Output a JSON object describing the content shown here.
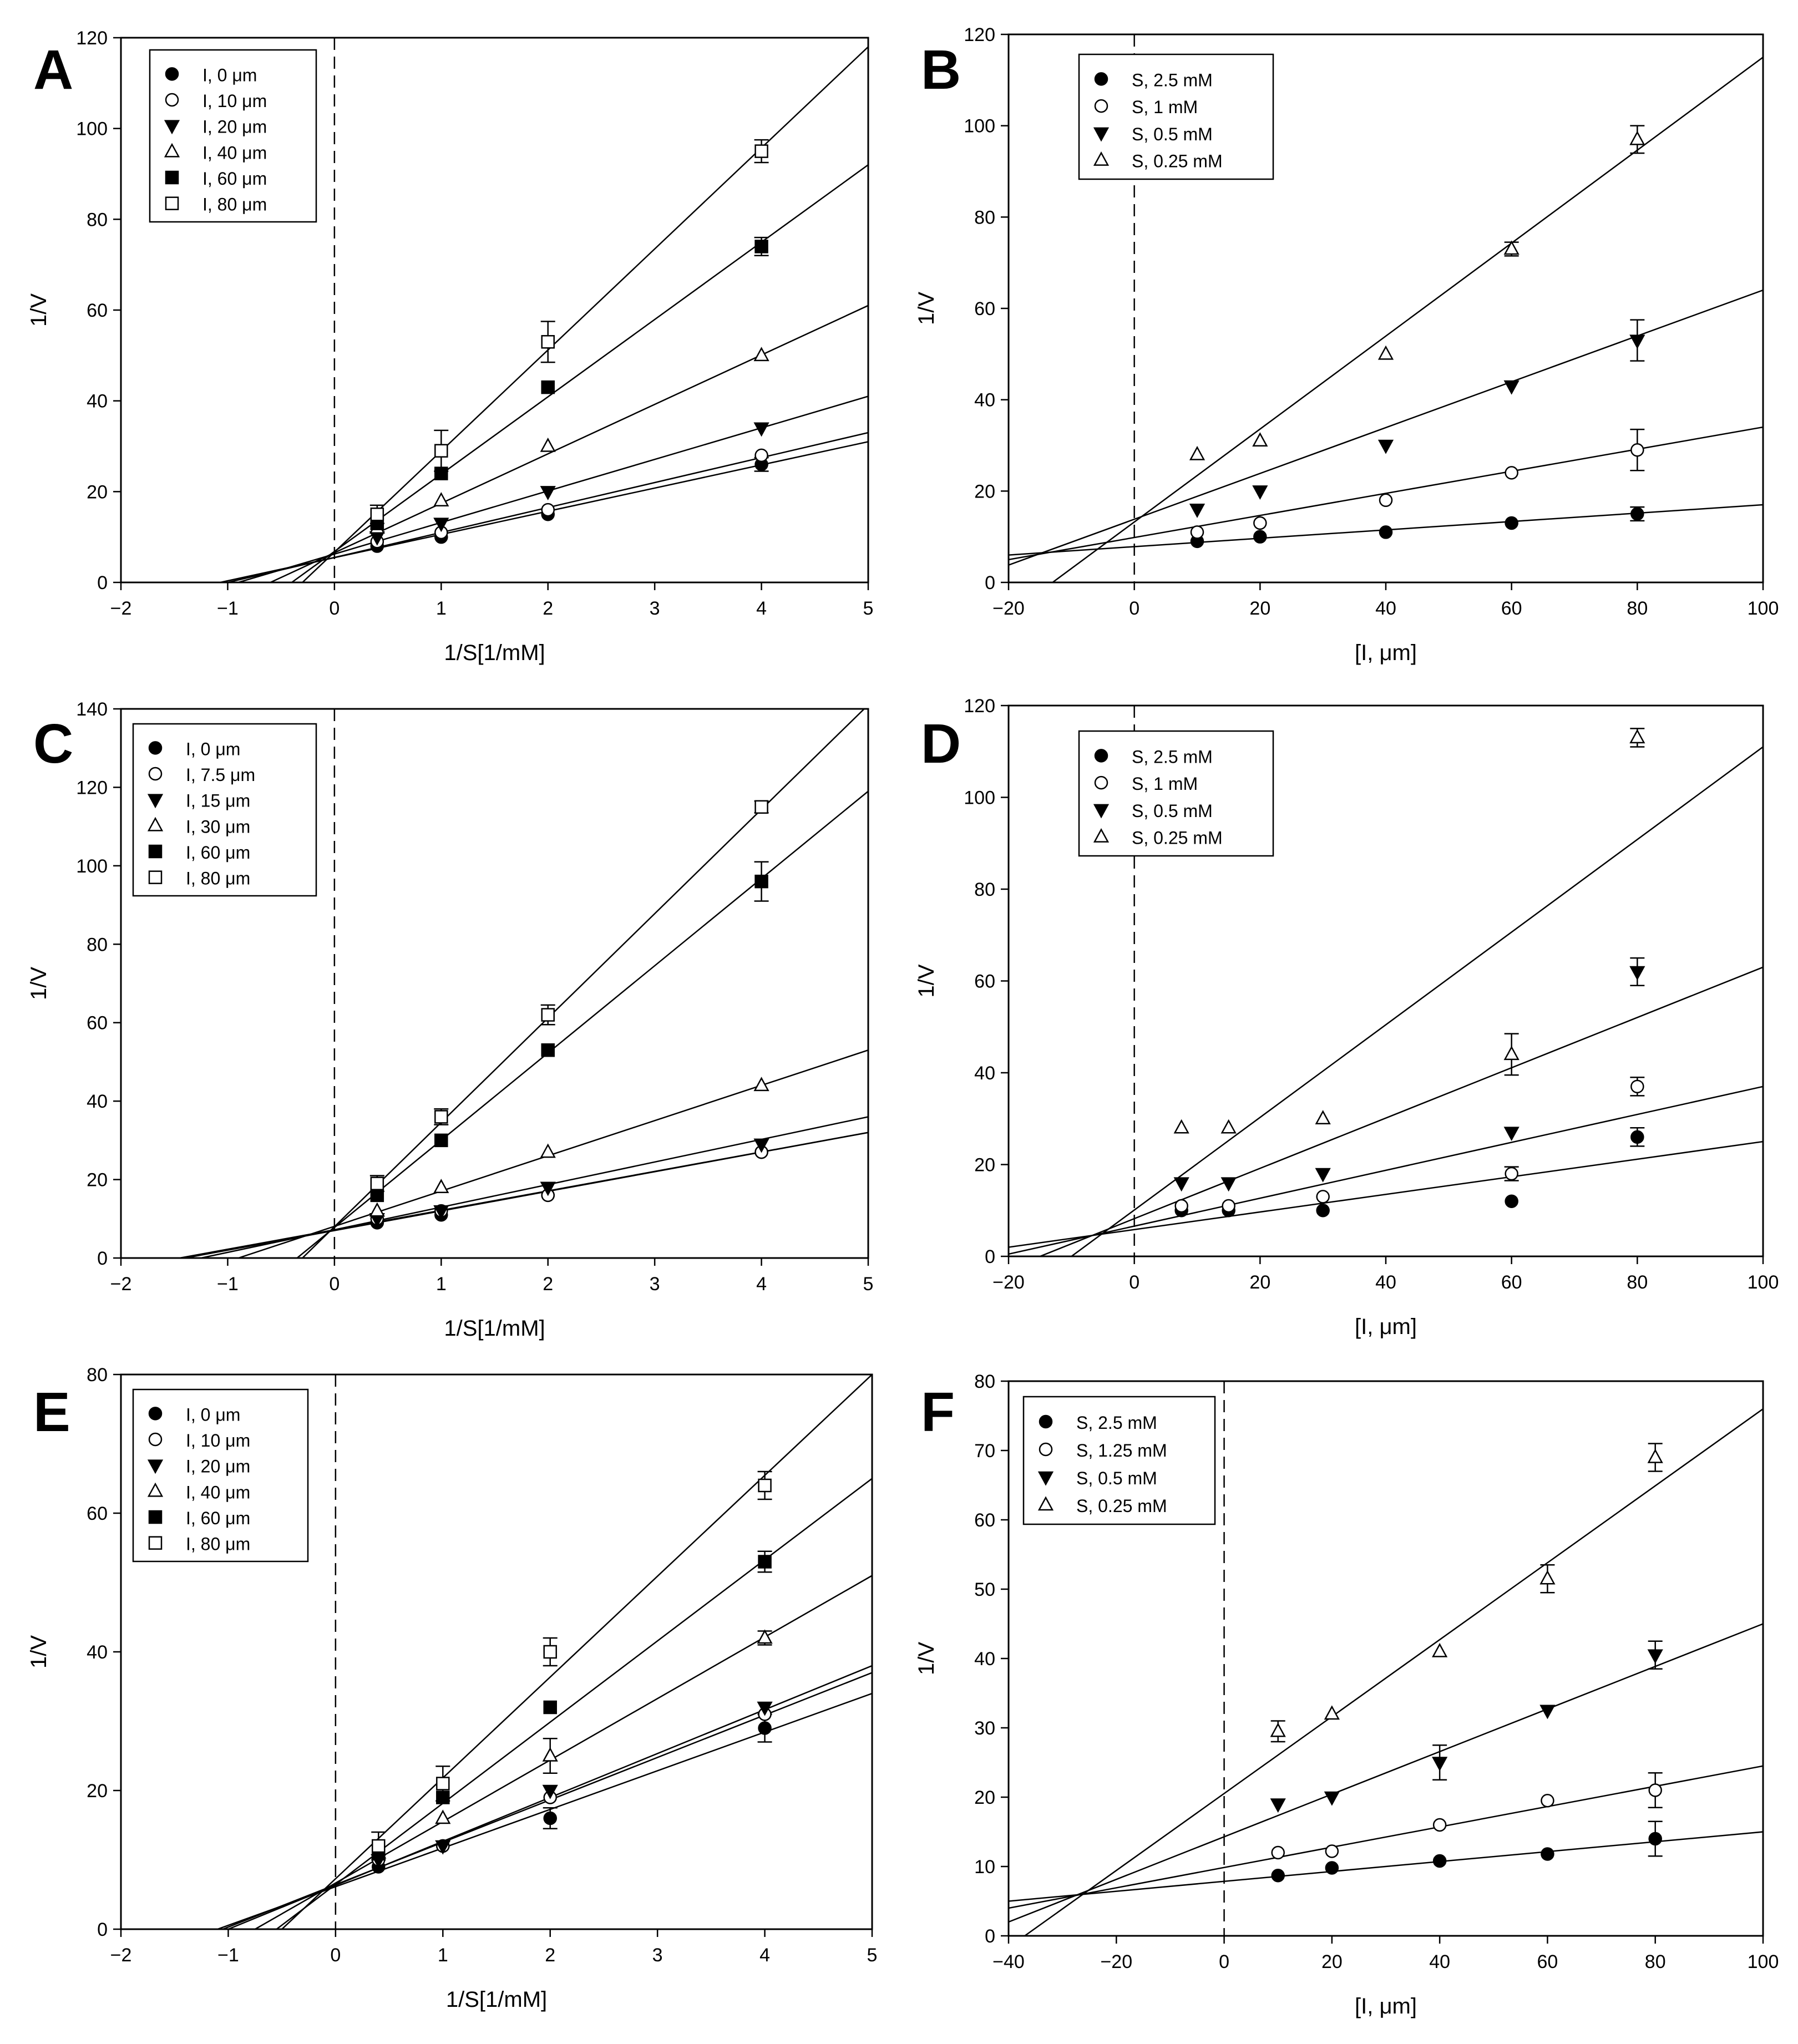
{
  "chart_data": [
    {
      "type": "scatter",
      "panel": "A",
      "xlabel": "1/S[1/mM]",
      "ylabel": "1/V",
      "xlim": [
        -2,
        5
      ],
      "ylim": [
        0,
        120
      ],
      "xticks": [
        -2,
        -1,
        0,
        1,
        2,
        3,
        4,
        5
      ],
      "yticks": [
        0,
        20,
        40,
        60,
        80,
        100,
        120
      ],
      "tick_labels_x": [
        "−2",
        "−1",
        "0",
        "1",
        "2",
        "3",
        "4",
        "5"
      ],
      "tick_labels_y": [
        "0",
        "20",
        "40",
        "60",
        "80",
        "100",
        "120"
      ],
      "dashed_vline_x": 0,
      "x": [
        0.4,
        1,
        2,
        4
      ],
      "series": [
        {
          "name": "I, 0 μm",
          "marker": "circle-filled",
          "values": [
            8,
            10,
            15,
            26
          ],
          "errors": [
            0,
            0,
            0,
            1.5
          ],
          "fit": [
            [
              -1.07,
              0
            ],
            [
              5,
              31
            ]
          ]
        },
        {
          "name": "I, 10 μm",
          "marker": "circle-open",
          "values": [
            9,
            11,
            16,
            28
          ],
          "errors": [
            0,
            0,
            0,
            0
          ],
          "fit": [
            [
              -1.0,
              0
            ],
            [
              5,
              33
            ]
          ]
        },
        {
          "name": "I, 20 μm",
          "marker": "triangle-down-filled",
          "values": [
            10,
            13,
            20,
            34
          ],
          "errors": [
            0,
            0,
            0,
            0
          ],
          "fit": [
            [
              -0.9,
              0
            ],
            [
              5,
              41
            ]
          ]
        },
        {
          "name": "I, 40 μm",
          "marker": "triangle-up-open",
          "values": [
            12,
            18,
            30,
            50
          ],
          "errors": [
            0,
            0,
            0,
            0
          ],
          "fit": [
            [
              -0.6,
              0
            ],
            [
              5,
              61
            ]
          ]
        },
        {
          "name": "I, 60 μm",
          "marker": "square-filled",
          "values": [
            13,
            24,
            43,
            74
          ],
          "errors": [
            0,
            0,
            0,
            2
          ],
          "fit": [
            [
              -0.4,
              0
            ],
            [
              5,
              92
            ]
          ]
        },
        {
          "name": "I, 80 μm",
          "marker": "square-open",
          "values": [
            15,
            29,
            53,
            95
          ],
          "errors": [
            2,
            4.5,
            4.5,
            2.5
          ],
          "fit": [
            [
              -0.3,
              0
            ],
            [
              5,
              118
            ]
          ]
        }
      ]
    },
    {
      "type": "scatter",
      "panel": "B",
      "xlabel": "[I, μm]",
      "ylabel": "1/V",
      "xlim": [
        -20,
        100
      ],
      "ylim": [
        0,
        120
      ],
      "xticks": [
        -20,
        0,
        20,
        40,
        60,
        80,
        100
      ],
      "yticks": [
        0,
        20,
        40,
        60,
        80,
        100,
        120
      ],
      "tick_labels_x": [
        "−20",
        "0",
        "20",
        "40",
        "60",
        "80",
        "100"
      ],
      "tick_labels_y": [
        "0",
        "20",
        "40",
        "60",
        "80",
        "100",
        "120"
      ],
      "dashed_vline_x": 0,
      "x": [
        10,
        20,
        40,
        60,
        80
      ],
      "series": [
        {
          "name": "S, 2.5 mM",
          "marker": "circle-filled",
          "values": [
            9,
            10,
            11,
            13,
            15
          ],
          "errors": [
            0,
            0,
            0,
            0,
            1.5
          ],
          "fit": [
            [
              -20,
              6
            ],
            [
              100,
              17
            ]
          ]
        },
        {
          "name": "S, 1 mM",
          "marker": "circle-open",
          "values": [
            11,
            13,
            18,
            24,
            29
          ],
          "errors": [
            0,
            0,
            0,
            0,
            4.5
          ],
          "fit": [
            [
              -20,
              5
            ],
            [
              100,
              34
            ]
          ]
        },
        {
          "name": "S, 0.5 mM",
          "marker": "triangle-down-filled",
          "values": [
            16,
            20,
            30,
            43,
            53
          ],
          "errors": [
            0,
            0,
            0,
            0,
            4.5
          ],
          "fit": [
            [
              -20,
              3.8
            ],
            [
              100,
              64
            ]
          ]
        },
        {
          "name": "S, 0.25 mM",
          "marker": "triangle-up-open",
          "values": [
            28,
            31,
            50,
            73,
            97
          ],
          "errors": [
            0,
            0,
            0,
            1.5,
            3
          ],
          "fit": [
            [
              -13,
              0
            ],
            [
              100,
              115
            ]
          ]
        }
      ]
    },
    {
      "type": "scatter",
      "panel": "C",
      "xlabel": "1/S[1/mM]",
      "ylabel": "1/V",
      "xlim": [
        -2,
        5
      ],
      "ylim": [
        0,
        140
      ],
      "xticks": [
        -2,
        -1,
        0,
        1,
        2,
        3,
        4,
        5
      ],
      "yticks": [
        0,
        20,
        40,
        60,
        80,
        100,
        120,
        140
      ],
      "tick_labels_x": [
        "−2",
        "−1",
        "0",
        "1",
        "2",
        "3",
        "4",
        "5"
      ],
      "tick_labels_y": [
        "0",
        "20",
        "40",
        "60",
        "80",
        "100",
        "120",
        "140"
      ],
      "dashed_vline_x": 0,
      "x": [
        0.4,
        1,
        2,
        4
      ],
      "series": [
        {
          "name": "I, 0 μm",
          "marker": "circle-filled",
          "values": [
            9,
            11,
            16,
            27
          ],
          "errors": [
            0,
            0,
            0,
            0
          ],
          "fit": [
            [
              -1.45,
              0
            ],
            [
              5,
              32
            ]
          ]
        },
        {
          "name": "I, 7.5 μm",
          "marker": "circle-open",
          "values": [
            10,
            12,
            16,
            27
          ],
          "errors": [
            0,
            0,
            0,
            0
          ],
          "fit": [
            [
              -1.4,
              0
            ],
            [
              5,
              32
            ]
          ]
        },
        {
          "name": "I, 15 μm",
          "marker": "triangle-down-filled",
          "values": [
            10,
            12,
            18,
            29
          ],
          "errors": [
            0,
            0,
            0,
            0
          ],
          "fit": [
            [
              -1.25,
              0
            ],
            [
              5,
              36
            ]
          ]
        },
        {
          "name": "I, 30 μm",
          "marker": "triangle-up-open",
          "values": [
            12,
            18,
            27,
            44
          ],
          "errors": [
            0,
            0,
            0,
            0
          ],
          "fit": [
            [
              -0.9,
              0
            ],
            [
              5,
              53
            ]
          ]
        },
        {
          "name": "I, 60 μm",
          "marker": "square-filled",
          "values": [
            16,
            30,
            53,
            96
          ],
          "errors": [
            0,
            0,
            0,
            5
          ],
          "fit": [
            [
              -0.35,
              0
            ],
            [
              5,
              119
            ]
          ]
        },
        {
          "name": "I, 80 μm",
          "marker": "square-open",
          "values": [
            19,
            36,
            62,
            115
          ],
          "errors": [
            2,
            2,
            2.5,
            1.5
          ],
          "fit": [
            [
              -0.3,
              0
            ],
            [
              5,
              141
            ]
          ]
        }
      ]
    },
    {
      "type": "scatter",
      "panel": "D",
      "xlabel": "[I, μm]",
      "ylabel": "1/V",
      "xlim": [
        -20,
        100
      ],
      "ylim": [
        0,
        120
      ],
      "xticks": [
        -20,
        0,
        20,
        40,
        60,
        80,
        100
      ],
      "yticks": [
        0,
        20,
        40,
        60,
        80,
        100,
        120
      ],
      "tick_labels_x": [
        "−20",
        "0",
        "20",
        "40",
        "60",
        "80",
        "100"
      ],
      "tick_labels_y": [
        "0",
        "20",
        "40",
        "60",
        "80",
        "100",
        "120"
      ],
      "dashed_vline_x": 0,
      "x": [
        7.5,
        15,
        30,
        60,
        80
      ],
      "series": [
        {
          "name": "S, 2.5 mM",
          "marker": "circle-filled",
          "values": [
            10,
            10,
            10,
            12,
            26
          ],
          "errors": [
            0,
            0,
            0,
            0,
            2
          ],
          "fit": [
            [
              -20,
              2
            ],
            [
              100,
              25
            ]
          ]
        },
        {
          "name": "S, 1 mM",
          "marker": "circle-open",
          "values": [
            11,
            11,
            13,
            18,
            37
          ],
          "errors": [
            0,
            0,
            0,
            1.5,
            2
          ],
          "fit": [
            [
              -20,
              0.5
            ],
            [
              100,
              37
            ]
          ]
        },
        {
          "name": "S, 0.5 mM",
          "marker": "triangle-down-filled",
          "values": [
            16,
            16,
            18,
            27,
            62
          ],
          "errors": [
            0,
            0,
            0,
            0,
            3
          ],
          "fit": [
            [
              -15,
              0
            ],
            [
              100,
              63
            ]
          ]
        },
        {
          "name": "S, 0.25 mM",
          "marker": "triangle-up-open",
          "values": [
            28,
            28,
            30,
            44,
            113
          ],
          "errors": [
            0,
            0,
            0,
            4.5,
            2
          ],
          "fit": [
            [
              -10,
              0
            ],
            [
              100,
              111
            ]
          ]
        }
      ]
    },
    {
      "type": "scatter",
      "panel": "E",
      "xlabel": "1/S[1/mM]",
      "ylabel": "1/V",
      "xlim": [
        -2,
        5
      ],
      "ylim": [
        0,
        80
      ],
      "xticks": [
        -2,
        -1,
        0,
        1,
        2,
        3,
        4,
        5
      ],
      "yticks": [
        0,
        20,
        40,
        60,
        80
      ],
      "tick_labels_x": [
        "−2",
        "−1",
        "0",
        "1",
        "2",
        "3",
        "4",
        "5"
      ],
      "tick_labels_y": [
        "0",
        "20",
        "40",
        "60",
        "80"
      ],
      "dashed_vline_x": 0,
      "x": [
        0.4,
        1,
        2,
        4
      ],
      "series": [
        {
          "name": "I, 0 μm",
          "marker": "circle-filled",
          "values": [
            9,
            12,
            16,
            29
          ],
          "errors": [
            0,
            0,
            1.5,
            2
          ],
          "fit": [
            [
              -1.1,
              0
            ],
            [
              5,
              34
            ]
          ]
        },
        {
          "name": "I, 10 μm",
          "marker": "circle-open",
          "values": [
            10,
            12,
            19,
            31
          ],
          "errors": [
            0,
            0,
            0,
            0
          ],
          "fit": [
            [
              -1.05,
              0
            ],
            [
              5,
              37
            ]
          ]
        },
        {
          "name": "I, 20 μm",
          "marker": "triangle-down-filled",
          "values": [
            10,
            12,
            20,
            32
          ],
          "errors": [
            0,
            0,
            0,
            0
          ],
          "fit": [
            [
              -1.0,
              0
            ],
            [
              5,
              38
            ]
          ]
        },
        {
          "name": "I, 40 μm",
          "marker": "triangle-up-open",
          "values": [
            11,
            16,
            25,
            42
          ],
          "errors": [
            0,
            0,
            2.5,
            1
          ],
          "fit": [
            [
              -0.75,
              0
            ],
            [
              5,
              51
            ]
          ]
        },
        {
          "name": "I, 60 μm",
          "marker": "square-filled",
          "values": [
            11,
            19,
            32,
            53
          ],
          "errors": [
            0,
            0,
            0,
            1.5
          ],
          "fit": [
            [
              -0.55,
              0
            ],
            [
              5,
              65
            ]
          ]
        },
        {
          "name": "I, 80 μm",
          "marker": "square-open",
          "values": [
            12,
            21,
            40,
            64
          ],
          "errors": [
            2,
            2.5,
            2,
            2
          ],
          "fit": [
            [
              -0.5,
              0
            ],
            [
              5,
              80
            ]
          ]
        }
      ]
    },
    {
      "type": "scatter",
      "panel": "F",
      "xlabel": "[I, μm]",
      "ylabel": "1/V",
      "xlim": [
        -40,
        100
      ],
      "ylim": [
        0,
        80
      ],
      "xticks": [
        -40,
        -20,
        0,
        20,
        40,
        60,
        80,
        100
      ],
      "yticks": [
        0,
        10,
        20,
        30,
        40,
        50,
        60,
        70,
        80
      ],
      "tick_labels_x": [
        "−40",
        "−20",
        "0",
        "20",
        "40",
        "60",
        "80",
        "100"
      ],
      "tick_labels_y": [
        "0",
        "10",
        "20",
        "30",
        "40",
        "50",
        "60",
        "70",
        "80"
      ],
      "dashed_vline_x": 0,
      "x": [
        10,
        20,
        40,
        60,
        80
      ],
      "series": [
        {
          "name": "S, 2.5 mM",
          "marker": "circle-filled",
          "values": [
            8.7,
            9.8,
            10.8,
            11.8,
            14
          ],
          "errors": [
            0,
            0,
            0,
            0,
            2.5
          ],
          "fit": [
            [
              -40,
              5
            ],
            [
              100,
              15
            ]
          ]
        },
        {
          "name": "S, 1.25 mM",
          "marker": "circle-open",
          "values": [
            12,
            12.2,
            16,
            19.5,
            21
          ],
          "errors": [
            0,
            0,
            0,
            0,
            2.5
          ],
          "fit": [
            [
              -40,
              4
            ],
            [
              100,
              24.5
            ]
          ]
        },
        {
          "name": "S, 0.5 mM",
          "marker": "triangle-down-filled",
          "values": [
            19,
            20,
            25,
            32.5,
            40.5
          ],
          "errors": [
            0,
            0,
            2.5,
            0,
            2
          ],
          "fit": [
            [
              -40,
              2
            ],
            [
              100,
              45
            ]
          ]
        },
        {
          "name": "S, 0.25 mM",
          "marker": "triangle-up-open",
          "values": [
            29.5,
            32,
            41,
            51.5,
            69
          ],
          "errors": [
            1.5,
            0,
            0,
            2,
            2
          ],
          "fit": [
            [
              -37,
              0
            ],
            [
              100,
              76
            ]
          ]
        }
      ]
    }
  ]
}
